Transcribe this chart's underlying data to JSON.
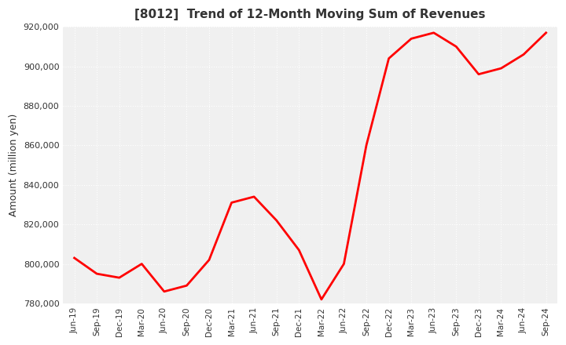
{
  "title": "[8012]  Trend of 12-Month Moving Sum of Revenues",
  "ylabel": "Amount (million yen)",
  "line_color": "#FF0000",
  "line_width": 2.0,
  "background_color": "#FFFFFF",
  "plot_bg_color": "#F0F0F0",
  "grid_color": "#FFFFFF",
  "title_color": "#333333",
  "tick_color": "#333333",
  "x_labels": [
    "Jun-19",
    "Sep-19",
    "Dec-19",
    "Mar-20",
    "Jun-20",
    "Sep-20",
    "Dec-20",
    "Mar-21",
    "Jun-21",
    "Sep-21",
    "Dec-21",
    "Mar-22",
    "Jun-22",
    "Sep-22",
    "Dec-22",
    "Mar-23",
    "Jun-23",
    "Sep-23",
    "Dec-23",
    "Mar-24",
    "Jun-24",
    "Sep-24"
  ],
  "y_values": [
    803000,
    795000,
    793000,
    800000,
    786000,
    789000,
    802000,
    831000,
    834000,
    822000,
    807000,
    782000,
    800000,
    860000,
    904000,
    914000,
    917000,
    910000,
    896000,
    899000,
    906000,
    917000
  ],
  "ylim": [
    780000,
    920000
  ],
  "yticks": [
    780000,
    800000,
    820000,
    840000,
    860000,
    880000,
    900000,
    920000
  ]
}
